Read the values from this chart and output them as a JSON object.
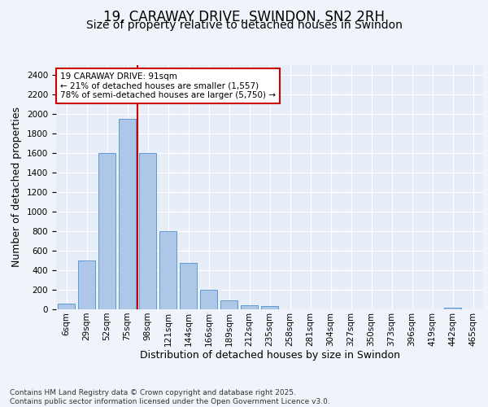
{
  "title": "19, CARAWAY DRIVE, SWINDON, SN2 2RH",
  "subtitle": "Size of property relative to detached houses in Swindon",
  "xlabel": "Distribution of detached houses by size in Swindon",
  "ylabel": "Number of detached properties",
  "categories": [
    "6sqm",
    "29sqm",
    "52sqm",
    "75sqm",
    "98sqm",
    "121sqm",
    "144sqm",
    "166sqm",
    "189sqm",
    "212sqm",
    "235sqm",
    "258sqm",
    "281sqm",
    "304sqm",
    "327sqm",
    "350sqm",
    "373sqm",
    "396sqm",
    "419sqm",
    "442sqm",
    "465sqm"
  ],
  "values": [
    55,
    500,
    1600,
    1950,
    1600,
    800,
    475,
    200,
    95,
    42,
    32,
    0,
    0,
    0,
    0,
    0,
    0,
    0,
    0,
    15,
    0
  ],
  "bar_color": "#aec6e8",
  "bar_edge_color": "#5b9bd5",
  "background_color": "#e8eef8",
  "grid_color": "#ffffff",
  "annotation_text": "19 CARAWAY DRIVE: 91sqm\n← 21% of detached houses are smaller (1,557)\n78% of semi-detached houses are larger (5,750) →",
  "annotation_box_color": "#ffffff",
  "annotation_box_edge": "#cc0000",
  "vline_x": 3.5,
  "vline_color": "#cc0000",
  "ylim": [
    0,
    2500
  ],
  "footnote": "Contains HM Land Registry data © Crown copyright and database right 2025.\nContains public sector information licensed under the Open Government Licence v3.0.",
  "title_fontsize": 12,
  "subtitle_fontsize": 10,
  "axis_label_fontsize": 9,
  "tick_fontsize": 7.5,
  "annotation_fontsize": 7.5,
  "footnote_fontsize": 6.5
}
